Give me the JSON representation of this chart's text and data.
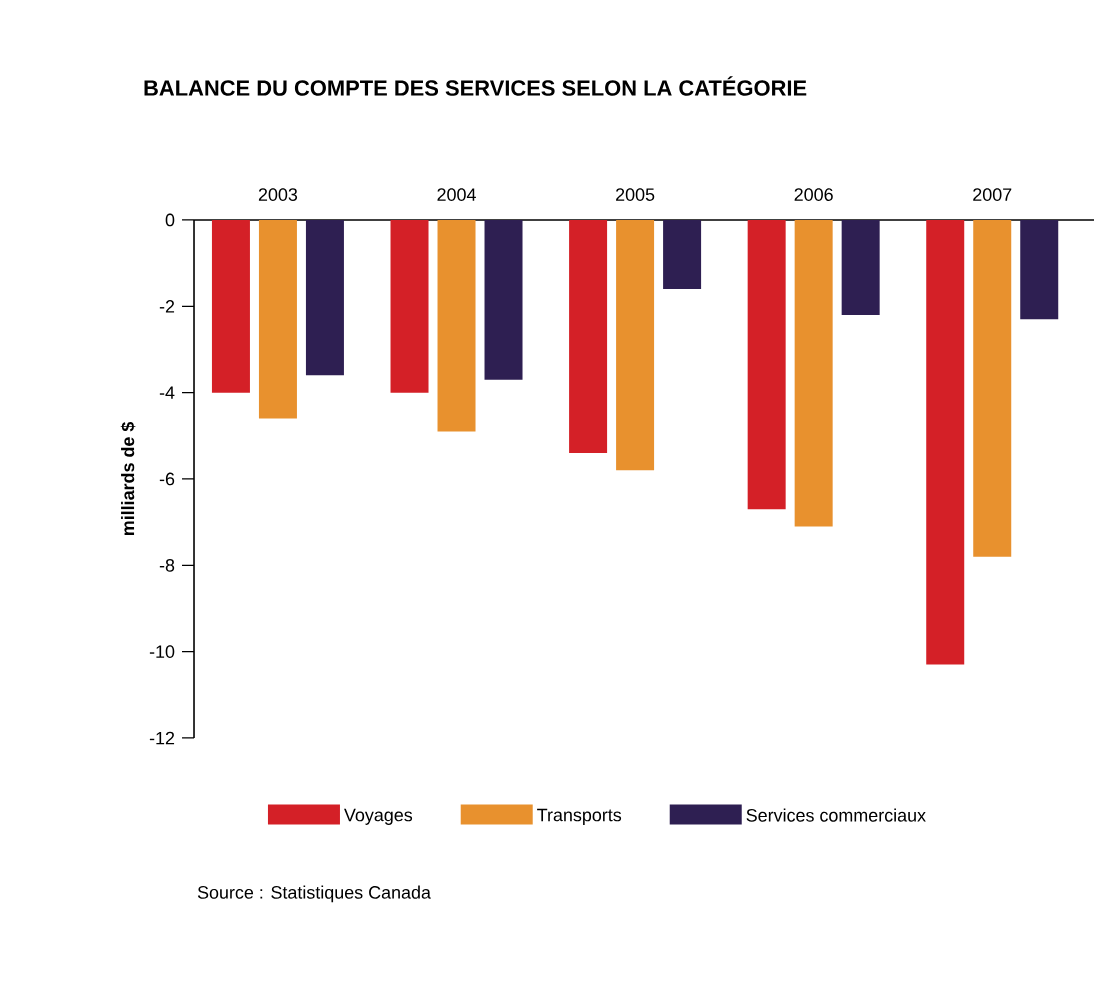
{
  "chart_data": {
    "type": "bar",
    "title": "BALANCE DU COMPTE DES SERVICES SELON LA CATÉGORIE",
    "ylabel": "milliards de $",
    "categories": [
      "2003",
      "2004",
      "2005",
      "2006",
      "2007"
    ],
    "series": [
      {
        "name": "Voyages",
        "color": "#d42027",
        "values": [
          -4.0,
          -4.0,
          -5.4,
          -6.7,
          -10.3
        ]
      },
      {
        "name": "Transports",
        "color": "#e8912e",
        "values": [
          -4.6,
          -4.9,
          -5.8,
          -7.1,
          -7.8
        ]
      },
      {
        "name": "Services commerciaux",
        "color": "#2e1f52",
        "values": [
          -3.6,
          -3.7,
          -1.6,
          -2.2,
          -2.3
        ]
      }
    ],
    "ylim": [
      -12,
      0
    ],
    "yticks": [
      0,
      -2,
      -4,
      -6,
      -8,
      -10,
      -12
    ],
    "legend": "bottom",
    "annotations": [
      "Source : Statistiques Canada"
    ]
  }
}
